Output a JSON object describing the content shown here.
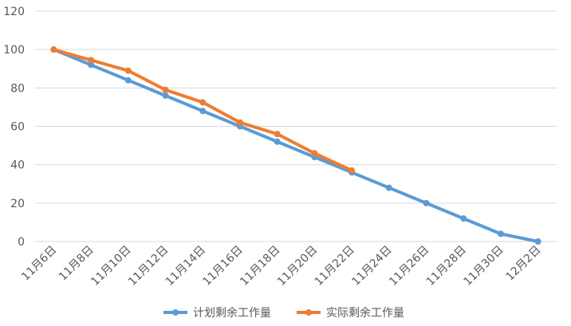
{
  "chart_data": {
    "type": "line",
    "categories": [
      "11月6日",
      "11月8日",
      "11月10日",
      "11月12日",
      "11月14日",
      "11月16日",
      "11月18日",
      "11月20日",
      "11月22日",
      "11月24日",
      "11月26日",
      "11月28日",
      "11月30日",
      "12月2日"
    ],
    "ylim": [
      0,
      120
    ],
    "yticks": [
      "0",
      "20",
      "40",
      "60",
      "80",
      "100",
      "120"
    ],
    "grid": true,
    "legend_position": "bottom",
    "series": [
      {
        "name": "计划剩余工作量",
        "color": "#5B9BD5",
        "values": [
          100,
          92,
          84,
          76,
          68,
          60,
          52,
          44,
          36,
          28,
          20,
          12,
          4,
          0
        ]
      },
      {
        "name": "实际剩余工作量",
        "color": "#ED7D31",
        "values": [
          100,
          94.5,
          89,
          79,
          72.5,
          62,
          56,
          46,
          37,
          null,
          null,
          null,
          null,
          null
        ]
      }
    ]
  }
}
